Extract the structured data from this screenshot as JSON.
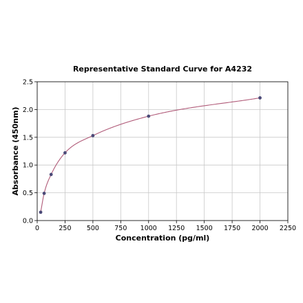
{
  "chart_data": {
    "type": "scatter",
    "title": "Representative Standard Curve for A4232",
    "xlabel": "Concentration (pg/ml)",
    "ylabel": "Absorbance (450nm)",
    "xlim": [
      0,
      2250
    ],
    "ylim": [
      0,
      2.5
    ],
    "xticks": [
      0,
      250,
      500,
      750,
      1000,
      1250,
      1500,
      1750,
      2000,
      2250
    ],
    "yticks": [
      0.0,
      0.5,
      1.0,
      1.5,
      2.0,
      2.5
    ],
    "xtick_labels": [
      "0",
      "250",
      "500",
      "750",
      "1000",
      "1250",
      "1500",
      "1750",
      "2000",
      "2250"
    ],
    "ytick_labels": [
      "0.0",
      "0.5",
      "1.0",
      "1.5",
      "2.0",
      "2.5"
    ],
    "grid": true,
    "series": [
      {
        "x": [
          31.25,
          62.5,
          125,
          250,
          500,
          1000,
          2000
        ],
        "y": [
          0.15,
          0.49,
          0.83,
          1.22,
          1.53,
          1.88,
          2.21
        ],
        "marker_color": "#4b4a78",
        "curve_color": "#b05a78"
      }
    ]
  }
}
